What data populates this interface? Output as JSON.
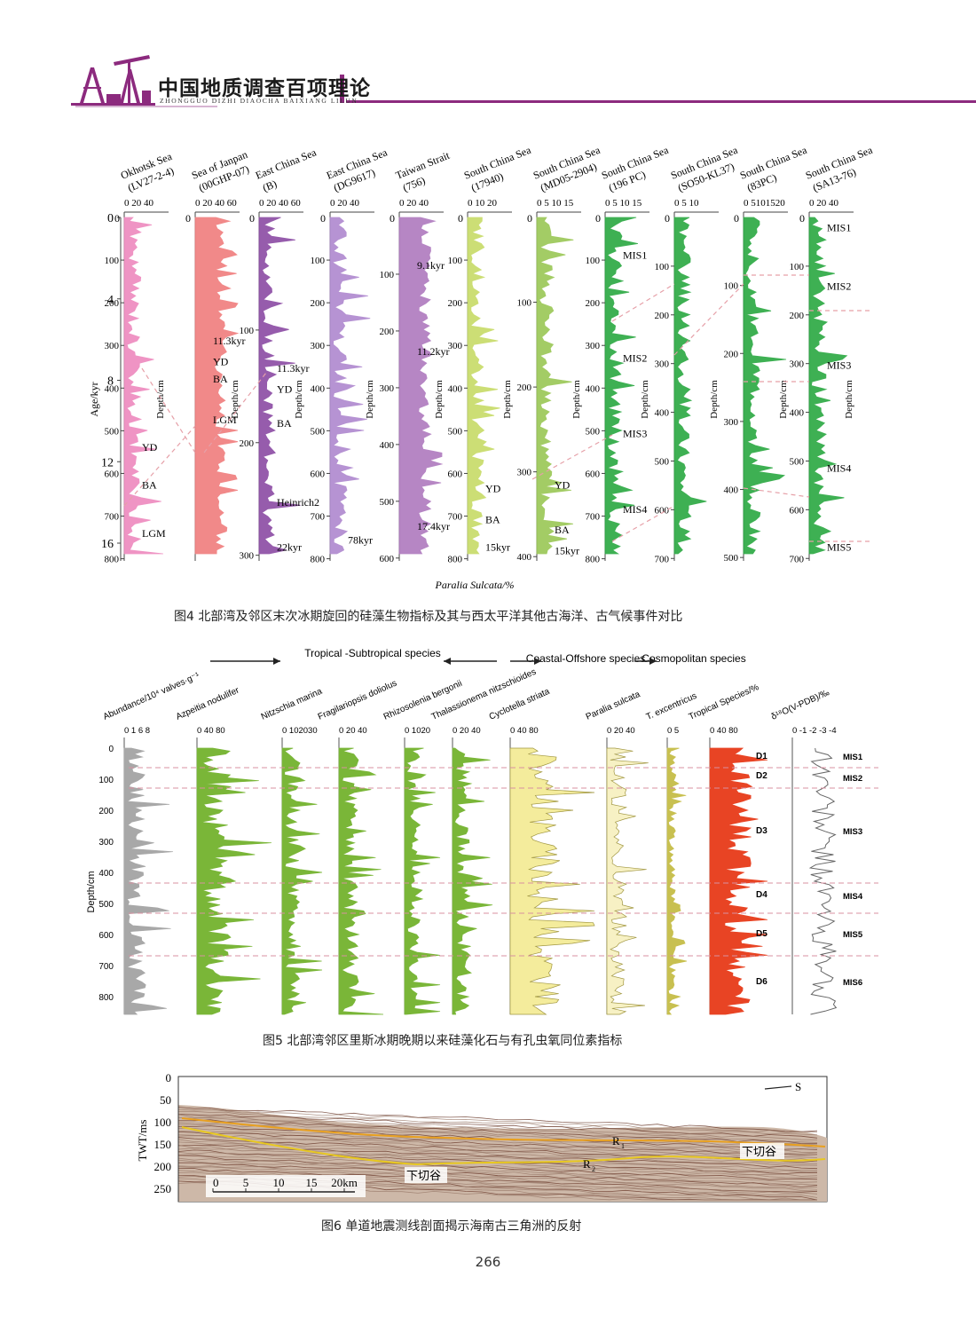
{
  "header": {
    "title": "中国地质调查百项理论",
    "subtitle": "ZHONGGUO DIZHI DIAOCHA BAIXIANG LILUN",
    "accent_color": "#8c2a7e"
  },
  "figure4": {
    "caption": "图4 北部湾及邻区末次冰期旋回的硅藻生物指标及其与西太平洋其他古海洋、古气候事件对比",
    "age_axis": {
      "label": "Age/kyr",
      "ticks": [
        "0",
        "4",
        "8",
        "12",
        "16"
      ]
    },
    "x_label": "Paralia Sulcata/%",
    "depth_label": "Depth/cm",
    "cores": [
      {
        "name": "Okhotsk Sea",
        "id": "(LV27-2-4)",
        "scale": "0 20 40",
        "color": "#ee8cbf",
        "depth_ticks": [
          "100",
          "200",
          "300",
          "400",
          "500",
          "600",
          "700",
          "800"
        ],
        "events": [
          {
            "t": "YD",
            "a": 0.68
          },
          {
            "t": "BA",
            "a": 0.79
          },
          {
            "t": "LGM",
            "a": 0.93
          }
        ]
      },
      {
        "name": "Sea of Janpan",
        "id": "(00GHP-07)",
        "scale": "0 20 40 60",
        "color": "#f08080",
        "depth_ticks": [],
        "events": [
          {
            "t": "11.3kyr",
            "a": 0.37
          },
          {
            "t": "YD",
            "a": 0.43
          },
          {
            "t": "BA",
            "a": 0.48
          },
          {
            "t": "LGM",
            "a": 0.6
          }
        ]
      },
      {
        "name": "East China Sea",
        "id": "(B)",
        "scale": "0 20 40 60",
        "color": "#8e4fa6",
        "depth_ticks": [
          "100",
          "200",
          "300"
        ],
        "events": [
          {
            "t": "11.3kyr",
            "a": 0.45
          },
          {
            "t": "YD",
            "a": 0.51
          },
          {
            "t": "BA",
            "a": 0.61
          },
          {
            "t": "Heinrich2",
            "a": 0.84
          },
          {
            "t": "22kyr",
            "a": 0.97
          }
        ]
      },
      {
        "name": "East China Sea",
        "id": "(DG9617)",
        "scale": "0 20 40",
        "color": "#b08ad0",
        "depth_ticks": [
          "100",
          "200",
          "300",
          "400",
          "500",
          "600",
          "700",
          "800"
        ],
        "events": [
          {
            "t": "78kyr",
            "a": 0.95
          }
        ]
      },
      {
        "name": "Taiwan Strait",
        "id": "(756)",
        "scale": "0 20 40",
        "color": "#b07cc0",
        "depth_ticks": [
          "100",
          "200",
          "300",
          "400",
          "500",
          "600"
        ],
        "events": [
          {
            "t": "9.1kyr",
            "a": 0.15
          },
          {
            "t": "11.2kyr",
            "a": 0.4
          },
          {
            "t": "17.4kyr",
            "a": 0.91
          }
        ]
      },
      {
        "name": "South China Sea",
        "id": "(17940)",
        "scale": "0 10 20",
        "color": "#c8dc6a",
        "depth_ticks": [
          "100",
          "200",
          "300",
          "400",
          "500",
          "600",
          "700",
          "800"
        ],
        "events": [
          {
            "t": "YD",
            "a": 0.8
          },
          {
            "t": "BA",
            "a": 0.89
          },
          {
            "t": "15kyr",
            "a": 0.97
          }
        ]
      },
      {
        "name": "South China Sea",
        "id": "(MD05-2904)",
        "scale": "0 5 10 15",
        "color": "#9cc858",
        "depth_ticks": [
          "100",
          "200",
          "300",
          "400"
        ],
        "events": [
          {
            "t": "YD",
            "a": 0.79
          },
          {
            "t": "BA",
            "a": 0.92
          },
          {
            "t": "15kyr",
            "a": 0.98
          }
        ]
      },
      {
        "name": "South China Sea",
        "id": "(196 PC)",
        "scale": "0 5 10 15",
        "color": "#2eaa45",
        "depth_ticks": [
          "100",
          "200",
          "300",
          "400",
          "500",
          "600",
          "700",
          "800"
        ],
        "events": [
          {
            "t": "MIS1",
            "a": 0.12
          },
          {
            "t": "MIS2",
            "a": 0.42
          },
          {
            "t": "MIS3",
            "a": 0.64
          },
          {
            "t": "MIS4",
            "a": 0.86
          }
        ]
      },
      {
        "name": "South China Sea",
        "id": "(SO50-KL37)",
        "scale": "0 5 10",
        "color": "#2eaa45",
        "depth_ticks": [
          "100",
          "200",
          "300",
          "400",
          "500",
          "600",
          "700"
        ],
        "events": []
      },
      {
        "name": "South China Sea",
        "id": "(83PC)",
        "scale": "0 5101520",
        "color": "#2eaa45",
        "depth_ticks": [
          "100",
          "200",
          "300",
          "400",
          "500"
        ],
        "events": []
      },
      {
        "name": "South China Sea",
        "id": "(SA13-76)",
        "scale": "0 20 40",
        "color": "#2eaa45",
        "depth_ticks": [
          "100",
          "200",
          "300",
          "400",
          "500",
          "600",
          "700"
        ],
        "events": [
          {
            "t": "MIS1",
            "a": 0.04
          },
          {
            "t": "MIS2",
            "a": 0.21
          },
          {
            "t": "MIS3",
            "a": 0.44
          },
          {
            "t": "MIS4",
            "a": 0.74
          },
          {
            "t": "MIS5",
            "a": 0.97
          }
        ]
      }
    ]
  },
  "figure5": {
    "caption": "图5 北部湾邻区里斯冰期晚期以来硅藻化石与有孔虫氧同位素指标",
    "groups": [
      {
        "label": "Tropical -Subtropical species"
      },
      {
        "label": "Coastal-Offshore species"
      },
      {
        "label": "Cosmopolitan species"
      }
    ],
    "depth_label": "Depth/cm",
    "depth_ticks": [
      "0",
      "100",
      "200",
      "300",
      "400",
      "500",
      "600",
      "700",
      "800"
    ],
    "columns": [
      {
        "name": "Abundance/10⁴ valves·g⁻¹",
        "scale": "0 1 6 8",
        "color": "#a8a8a8"
      },
      {
        "name": "Azpeitia nodulifer",
        "scale": "0 40 80",
        "color": "#7ab638"
      },
      {
        "name": "Nitzschia marina",
        "scale": "0 102030",
        "color": "#7ab638"
      },
      {
        "name": "Fragilariopsis doliolus",
        "scale": "0 20 40",
        "color": "#7ab638"
      },
      {
        "name": "Rhizosolenia bergonii",
        "scale": "0 1020",
        "color": "#7ab638"
      },
      {
        "name": "Thalassionema nitzschioides",
        "scale": "0 20 40",
        "color": "#7ab638"
      },
      {
        "name": "Cyclotella striata",
        "scale": "0 40 80",
        "color": "#f4ec9c"
      },
      {
        "name": "Paralia sulcata",
        "scale": "0 20 40",
        "color": "#f7f1c4"
      },
      {
        "name": "T. excentricus",
        "scale": "0 5",
        "color": "#c8c050"
      },
      {
        "name": "Tropical Species/%",
        "scale": "0 40 80",
        "color": "#e84424"
      },
      {
        "name": "δ¹⁸O(V-PDB)/‰",
        "scale": "0 -1 -2 -3 -4",
        "color": "#666666"
      }
    ],
    "zones": [
      "D1",
      "D2",
      "D3",
      "D4",
      "D5",
      "D6"
    ],
    "mis": [
      "MIS1",
      "MIS2",
      "MIS3",
      "MIS4",
      "MIS5",
      "MIS6"
    ]
  },
  "figure6": {
    "caption": "图6 单道地震测线剖面揭示海南古三角洲的反射",
    "y_label": "TWT/ms",
    "y_ticks": [
      "0",
      "50",
      "100",
      "150",
      "200",
      "250"
    ],
    "scale_ticks": [
      "0",
      "5",
      "10",
      "15",
      "20km"
    ],
    "labels": {
      "r1": "R",
      "r1_sub": "1",
      "r2": "R",
      "r2_sub": "2",
      "valley1": "下切谷",
      "valley2": "下切谷",
      "dir": "S"
    }
  },
  "page_number": "266"
}
